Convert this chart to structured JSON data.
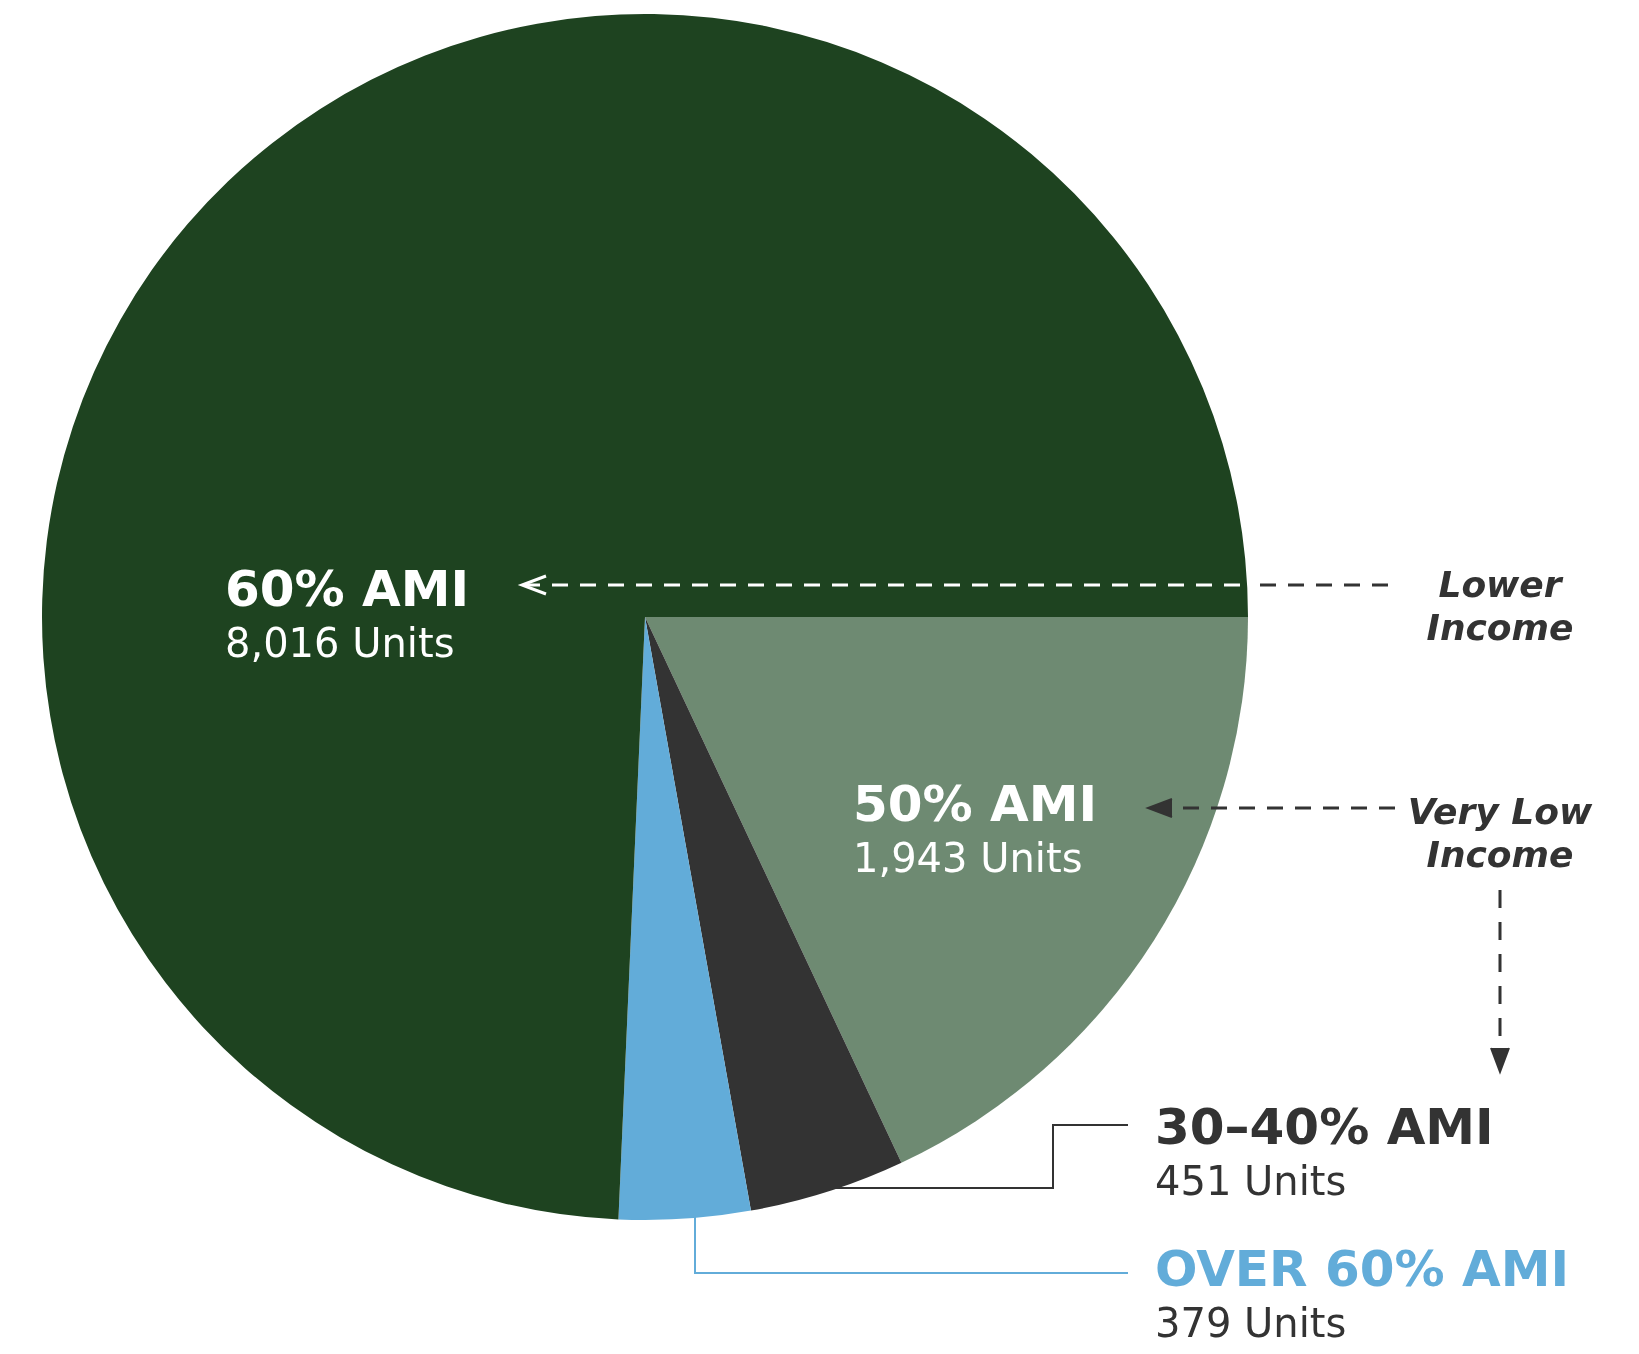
{
  "chart_data": {
    "type": "pie",
    "categories": [
      "50% AMI",
      "30–40% AMI",
      "OVER 60% AMI",
      "60% AMI"
    ],
    "values": [
      1943,
      451,
      379,
      8016
    ],
    "value_labels": [
      "1,943 Units",
      "451 Units",
      "379 Units",
      "8,016 Units"
    ],
    "colors": [
      "#6e8a72",
      "#333333",
      "#62acd9",
      "#1e4320"
    ],
    "annotations": [
      "Lower Income",
      "Very Low Income"
    ]
  }
}
